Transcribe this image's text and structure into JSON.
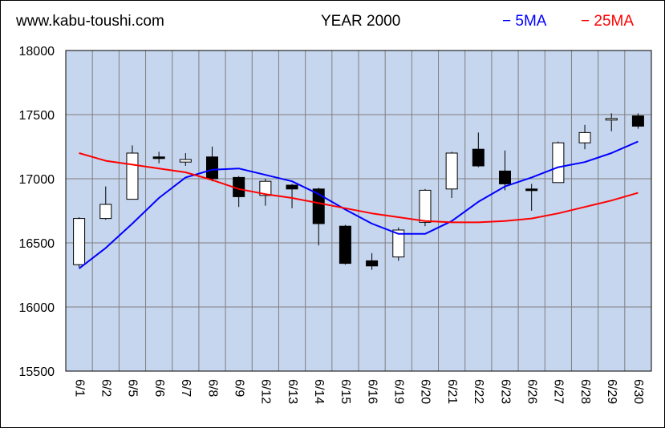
{
  "header": {
    "site": "www.kabu-toushi.com",
    "title": "YEAR 2000",
    "legend_5ma": "− 5MA",
    "legend_25ma": "− 25MA"
  },
  "colors": {
    "plot_bg": "#c6d6ee",
    "grid": "#7f7f7f",
    "ma5": "#0000ff",
    "ma25": "#ff0000",
    "up_candle": "#ffffff",
    "down_candle": "#000000"
  },
  "chart_data": {
    "type": "candlestick",
    "title": "YEAR 2000",
    "ylim": [
      15500,
      18000
    ],
    "yticks": [
      15500,
      16000,
      16500,
      17000,
      17500,
      18000
    ],
    "grid": true,
    "legend_position": "top-right",
    "categories": [
      "6/1",
      "6/2",
      "6/5",
      "6/6",
      "6/7",
      "6/8",
      "6/9",
      "6/12",
      "6/13",
      "6/14",
      "6/15",
      "6/16",
      "6/19",
      "6/20",
      "6/21",
      "6/22",
      "6/23",
      "6/26",
      "6/27",
      "6/28",
      "6/29",
      "6/30"
    ],
    "open": [
      16330,
      16690,
      16840,
      17170,
      17130,
      17170,
      17010,
      16870,
      16950,
      16920,
      16630,
      16360,
      16390,
      16660,
      16920,
      17230,
      17060,
      16920,
      16970,
      17280,
      17460,
      17490
    ],
    "close": [
      16690,
      16800,
      17200,
      17160,
      17150,
      17000,
      16860,
      16980,
      16920,
      16650,
      16340,
      16320,
      16600,
      16910,
      17200,
      17100,
      16960,
      16910,
      17280,
      17360,
      17470,
      17410
    ],
    "high": [
      16700,
      16940,
      17260,
      17210,
      17200,
      17250,
      17020,
      17000,
      16960,
      16930,
      16640,
      16420,
      16620,
      16920,
      17210,
      17360,
      17220,
      16960,
      17290,
      17420,
      17510,
      17510
    ],
    "low": [
      16310,
      16680,
      16840,
      17120,
      17100,
      16980,
      16780,
      16790,
      16770,
      16480,
      16330,
      16290,
      16360,
      16630,
      16850,
      17090,
      16910,
      16750,
      16970,
      17230,
      17370,
      17390
    ],
    "series": [
      {
        "name": "5MA",
        "values": [
          16300,
          16460,
          16650,
          16850,
          17010,
          17070,
          17080,
          17030,
          16980,
          16880,
          16760,
          16650,
          16570,
          16570,
          16670,
          16820,
          16940,
          17010,
          17090,
          17130,
          17200,
          17290
        ]
      },
      {
        "name": "25MA",
        "values": [
          17200,
          17140,
          17110,
          17080,
          17050,
          16990,
          16920,
          16880,
          16850,
          16810,
          16770,
          16730,
          16700,
          16670,
          16660,
          16660,
          16670,
          16690,
          16730,
          16780,
          16830,
          16890
        ]
      }
    ]
  }
}
